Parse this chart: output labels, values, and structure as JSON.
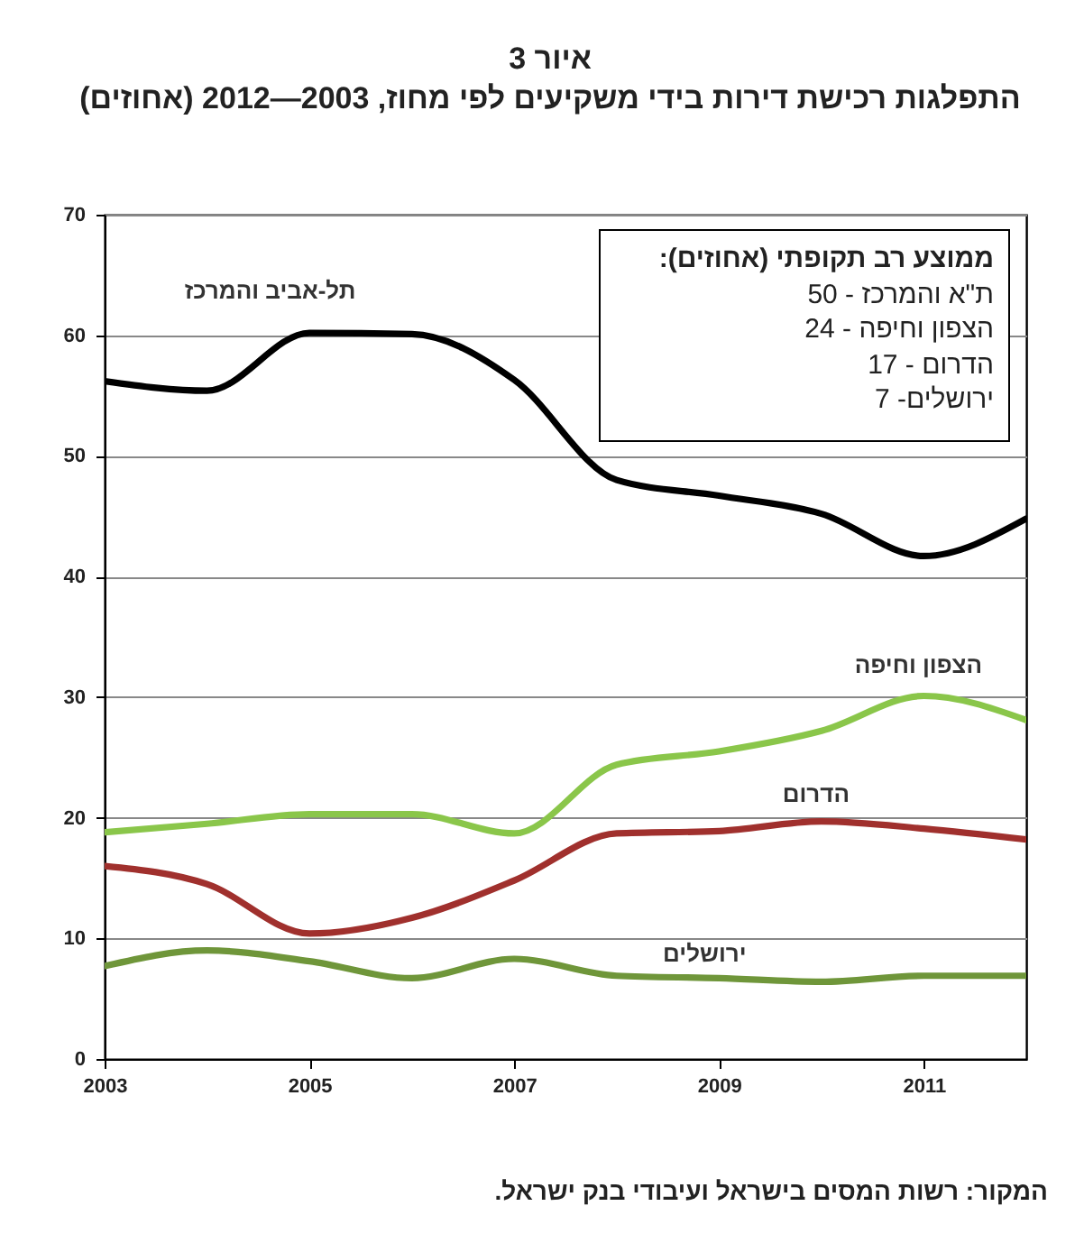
{
  "chart_data": {
    "type": "line",
    "title": "איור 3",
    "subtitle": "התפלגות רכישת דירות בידי משקיעים לפי מחוז, 2003—2012 (אחוזים)",
    "x": [
      2003,
      2004,
      2005,
      2006,
      2007,
      2008,
      2009,
      2010,
      2011,
      2012
    ],
    "series": [
      {
        "name": "תל-אביב והמרכז",
        "color": "#000000",
        "values": [
          56.2,
          55.4,
          60.2,
          60.1,
          56.3,
          48.0,
          46.7,
          45.2,
          41.7,
          44.8
        ]
      },
      {
        "name": "הצפון וחיפה",
        "color": "#8ac64a",
        "values": [
          18.8,
          19.5,
          20.3,
          20.3,
          18.7,
          24.4,
          25.5,
          27.2,
          30.1,
          28.1
        ]
      },
      {
        "name": "הדרום",
        "color": "#a0302d",
        "values": [
          16.0,
          14.5,
          10.4,
          11.7,
          14.8,
          18.7,
          18.9,
          19.7,
          19.1,
          18.2
        ]
      },
      {
        "name": "ירושלים",
        "color": "#6f963a",
        "values": [
          7.7,
          9.0,
          8.1,
          6.7,
          8.3,
          6.9,
          6.7,
          6.4,
          6.9,
          6.9
        ]
      }
    ],
    "xlim": [
      2003,
      2012
    ],
    "xticks": [
      2003,
      2005,
      2007,
      2009,
      2011
    ],
    "ylim": [
      0,
      70
    ],
    "yticks": [
      0,
      10,
      20,
      30,
      40,
      50,
      60,
      70
    ],
    "grid": "y",
    "legend": false,
    "marker": "none",
    "line_style": "solid",
    "annotations": [
      "ממוצע רב תקופתי (אחוזים):",
      "ת\"א והמרכז - 50",
      "הצפון וחיפה - 24",
      "הדרום - 17",
      "ירושלים- 7",
      "המקור: רשות המסים בישראל ועיבודי בנק ישראל."
    ]
  }
}
